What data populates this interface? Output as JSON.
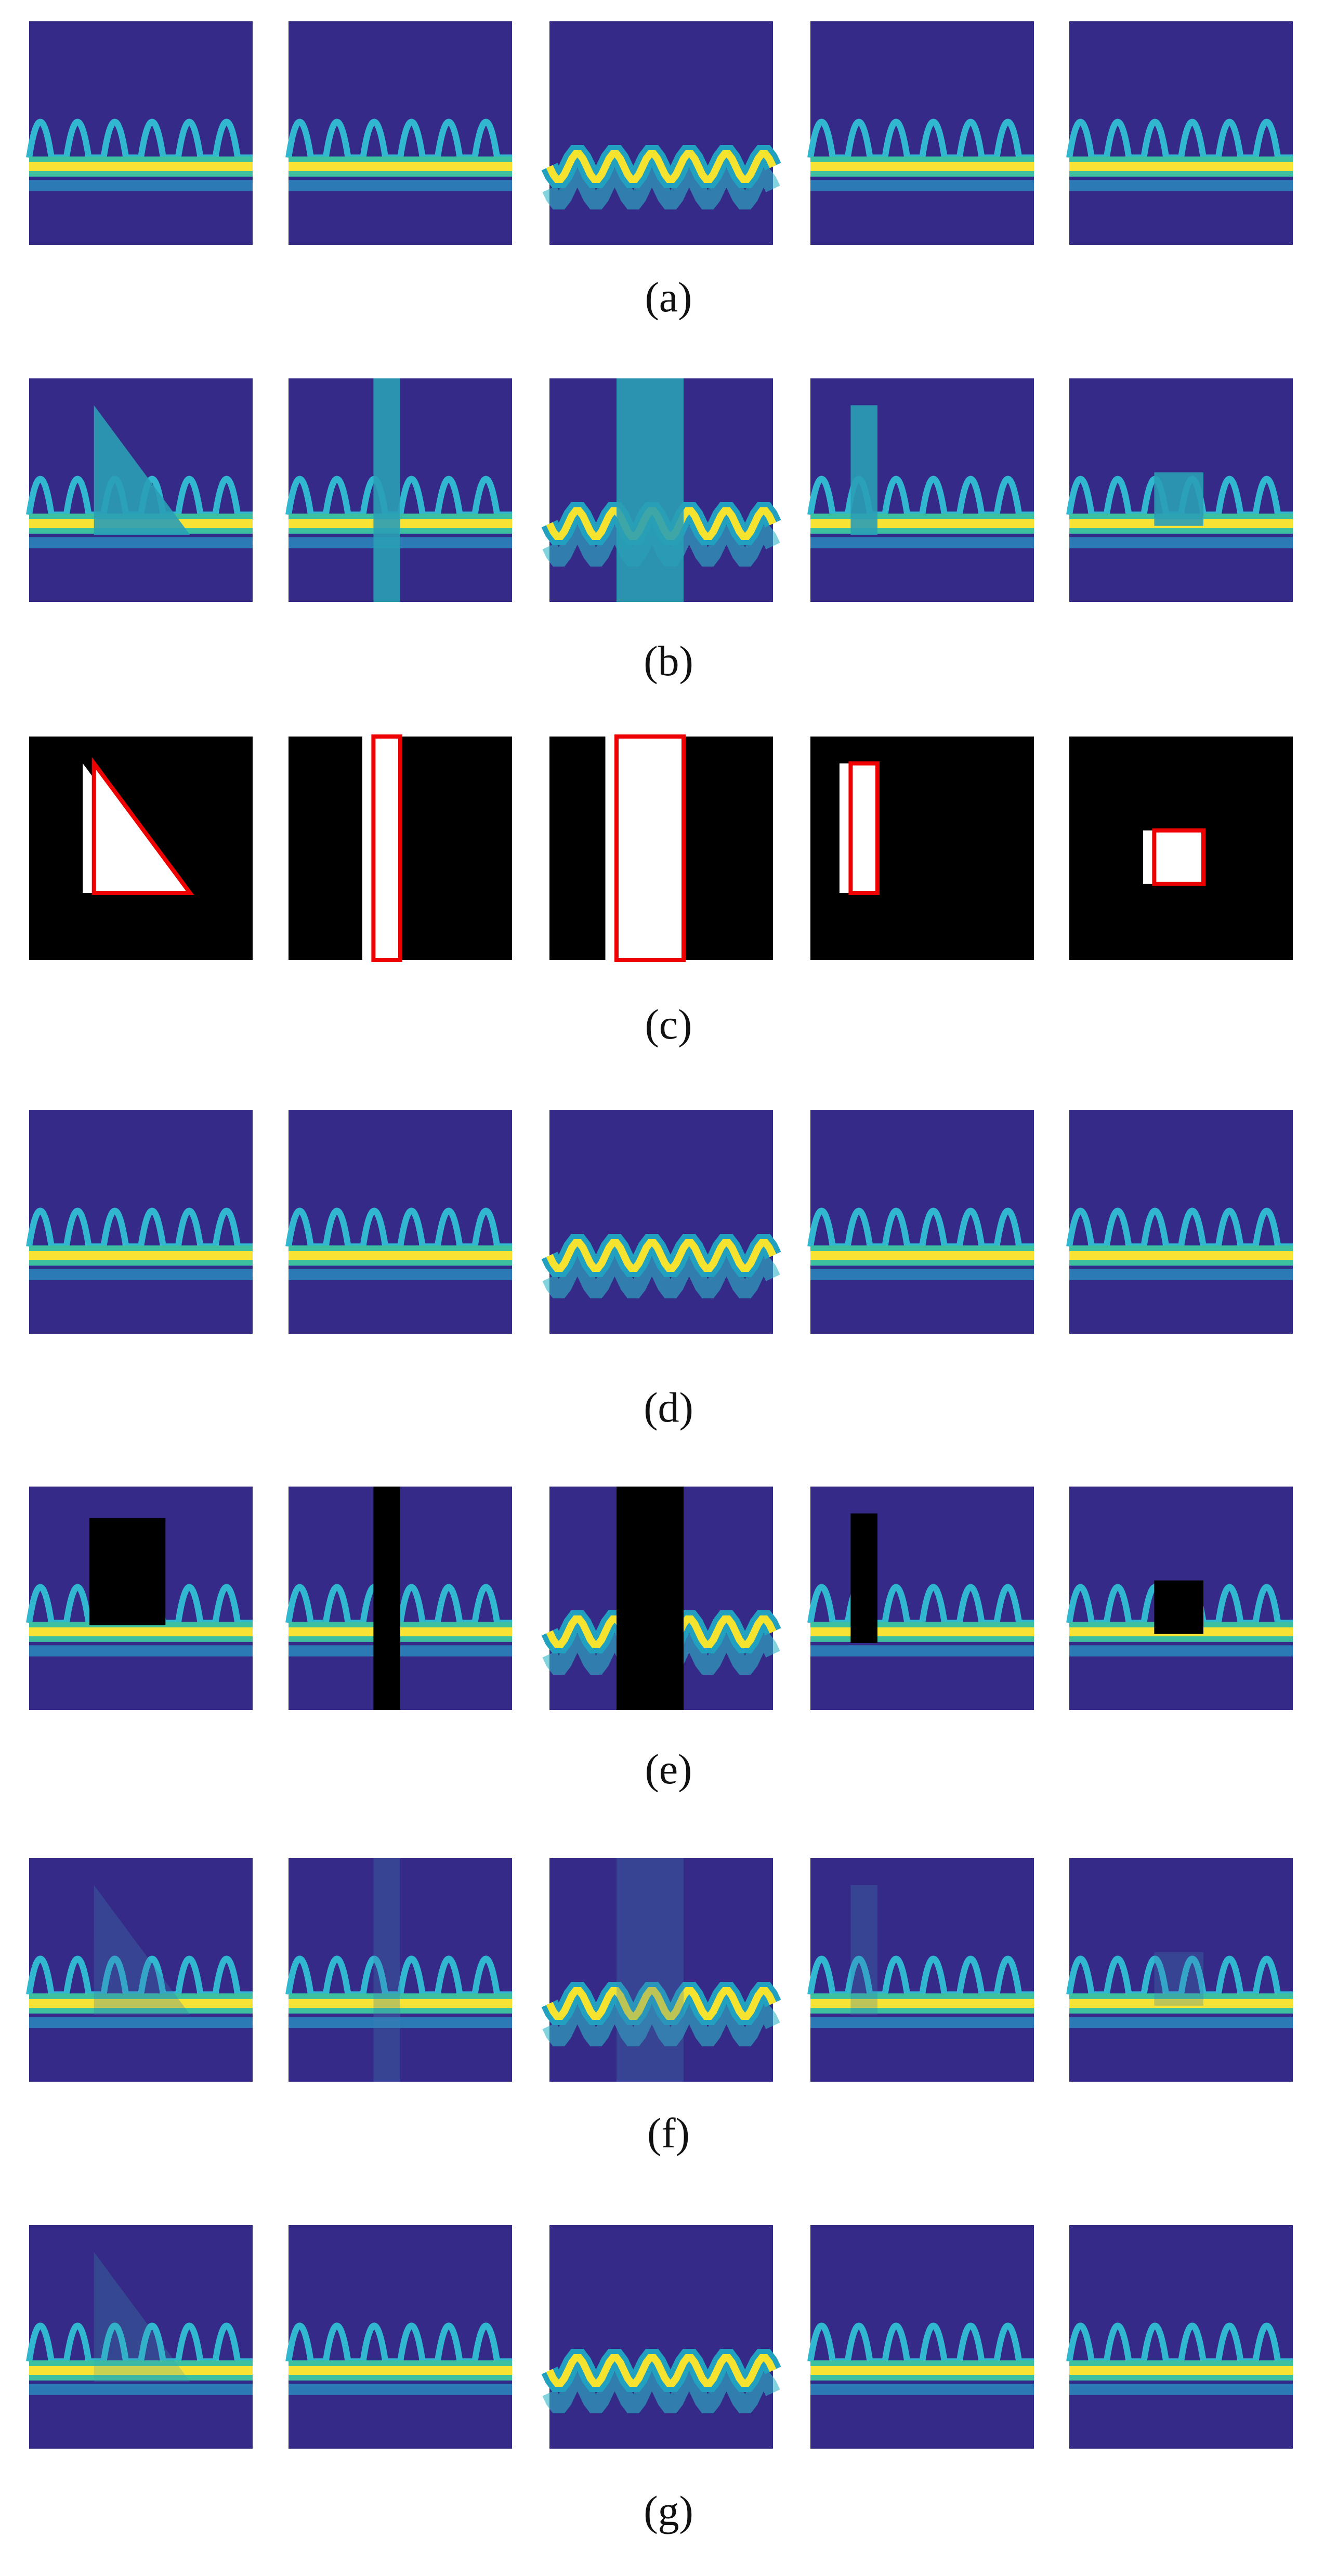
{
  "figure": {
    "labels": [
      "(a)",
      "(b)",
      "(c)",
      "(d)",
      "(e)",
      "(f)",
      "(g)"
    ]
  }
}
